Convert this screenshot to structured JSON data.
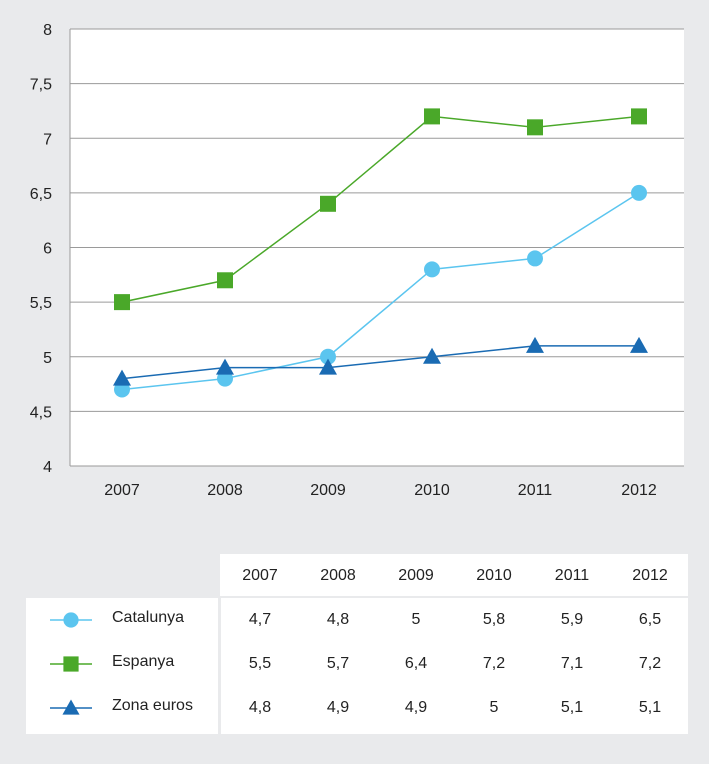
{
  "chart_data": {
    "type": "line",
    "title": "",
    "xlabel": "",
    "ylabel": "",
    "categories": [
      "2007",
      "2008",
      "2009",
      "2010",
      "2011",
      "2012"
    ],
    "ylim": [
      4,
      8
    ],
    "yticks": [
      "4",
      "4,5",
      "5",
      "5,5",
      "6",
      "6,5",
      "7",
      "7,5",
      "8"
    ],
    "grid": true,
    "series": [
      {
        "name": "Catalunya",
        "marker": "circle",
        "color": "#5bc5ef",
        "values": [
          4.7,
          4.8,
          5,
          5.8,
          5.9,
          6.5
        ],
        "labels": [
          "4,7",
          "4,8",
          "5",
          "5,8",
          "5,9",
          "6,5"
        ]
      },
      {
        "name": "Espanya",
        "marker": "square",
        "color": "#4aa829",
        "values": [
          5.5,
          5.7,
          6.4,
          7.2,
          7.1,
          7.2
        ],
        "labels": [
          "5,5",
          "5,7",
          "6,4",
          "7,2",
          "7,1",
          "7,2"
        ]
      },
      {
        "name": "Zona euros",
        "marker": "triangle",
        "color": "#1a6bb3",
        "values": [
          4.8,
          4.9,
          4.9,
          5,
          5.1,
          5.1
        ],
        "labels": [
          "4,8",
          "4,9",
          "4,9",
          "5",
          "5,1",
          "5,1"
        ]
      }
    ]
  }
}
